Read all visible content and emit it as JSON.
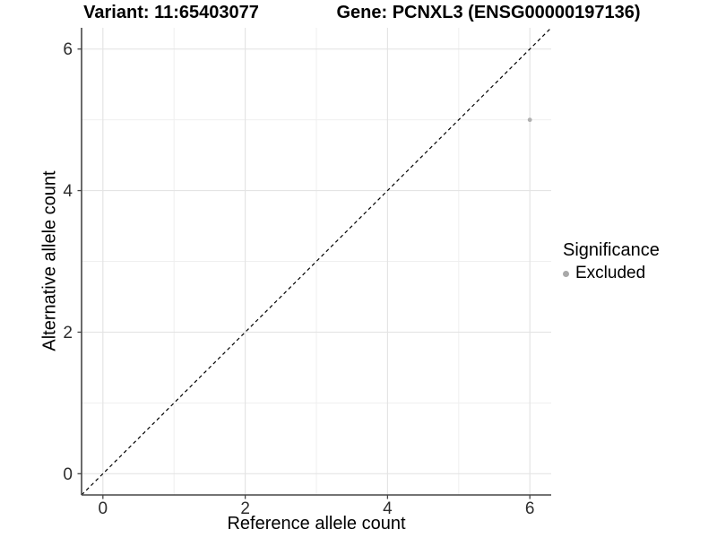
{
  "chart_data": {
    "type": "scatter",
    "title_left": "Variant: 11:65403077",
    "title_right": "Gene: PCNXL3 (ENSG00000197136)",
    "xlabel": "Reference allele count",
    "ylabel": "Alternative allele count",
    "xlim": [
      -0.3,
      6.3
    ],
    "ylim": [
      -0.3,
      6.3
    ],
    "x_major_ticks": [
      0,
      2,
      4,
      6
    ],
    "y_major_ticks": [
      0,
      2,
      4,
      6
    ],
    "x_minor_ticks": [
      1,
      3,
      5
    ],
    "y_minor_ticks": [
      1,
      3,
      5
    ],
    "grid": "major+minor",
    "legend_position": "right",
    "series": [
      {
        "name": "Excluded",
        "color": "#b0b0b0",
        "points": [
          {
            "x": 6,
            "y": 5
          }
        ]
      }
    ],
    "reference_line": {
      "type": "identity y=x",
      "style": "dashed",
      "color": "#000000"
    }
  },
  "legend": {
    "title": "Significance",
    "items": [
      {
        "label": "Excluded",
        "color": "#a9a9a9"
      }
    ]
  },
  "style": {
    "background": "#ffffff",
    "grid_major_color": "#e4e4e4",
    "grid_minor_color": "#efefef",
    "axis_line_color": "#464646",
    "tick_mark_color": "#464646",
    "tick_label_color": "#2d2d2d",
    "point_radius": 2.4
  }
}
